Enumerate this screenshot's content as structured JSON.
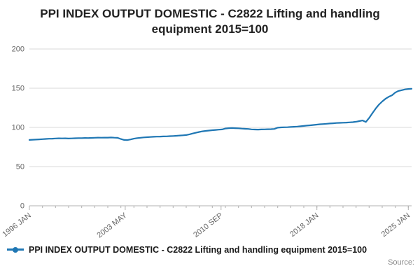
{
  "chart": {
    "title": "PPI INDEX OUTPUT DOMESTIC - C2822 Lifting and handling equipment 2015=100",
    "legend_label": "PPI INDEX OUTPUT DOMESTIC - C2822 Lifting and handling equipment 2015=100",
    "source_label": "Source:"
  },
  "colors": {
    "line": "#1f77b4",
    "grid": "#d9d9d9",
    "axis": "#b0b0b0",
    "tick_text": "#666666",
    "title_text": "#222222"
  },
  "chart_data": {
    "type": "line",
    "title": "PPI INDEX OUTPUT DOMESTIC - C2822 Lifting and handling equipment 2015=100",
    "series_name": "PPI INDEX OUTPUT DOMESTIC - C2822 Lifting and handling equipment 2015=100",
    "x_unit": "year (quarterly samples, decimal years)",
    "x_start": 1996.0,
    "x_step": 0.25,
    "xlim": [
      1996.0,
      2025.25
    ],
    "ylim": [
      0,
      200
    ],
    "yticks": [
      0,
      50,
      100,
      150,
      200
    ],
    "xticks": [
      {
        "pos": 1996.0,
        "label": "1996 JAN"
      },
      {
        "pos": 2003.333,
        "label": "2003 MAY"
      },
      {
        "pos": 2010.667,
        "label": "2010 SEP"
      },
      {
        "pos": 2018.0,
        "label": "2018 JAN"
      },
      {
        "pos": 2025.0,
        "label": "2025 JAN"
      }
    ],
    "grid": "horizontal gridlines only",
    "legend_position": "bottom-left",
    "values": [
      84.0,
      84.3,
      84.5,
      84.7,
      85.0,
      85.3,
      85.5,
      85.6,
      85.9,
      86.1,
      86.0,
      86.1,
      85.8,
      86.0,
      86.2,
      86.3,
      86.3,
      86.5,
      86.4,
      86.6,
      86.8,
      87.0,
      86.9,
      87.0,
      87.0,
      87.1,
      86.9,
      86.7,
      85.2,
      84.0,
      83.8,
      84.6,
      85.6,
      86.3,
      86.8,
      87.2,
      87.5,
      87.8,
      88.0,
      88.2,
      88.3,
      88.5,
      88.6,
      88.8,
      89.0,
      89.3,
      89.6,
      89.9,
      90.3,
      91.2,
      92.2,
      93.2,
      94.2,
      95.0,
      95.5,
      96.0,
      96.4,
      96.8,
      97.1,
      97.4,
      98.6,
      99.0,
      99.2,
      99.0,
      98.8,
      98.5,
      98.2,
      98.0,
      97.5,
      97.3,
      97.2,
      97.4,
      97.5,
      97.7,
      97.8,
      98.0,
      99.6,
      100.0,
      100.2,
      100.3,
      100.5,
      100.8,
      101.1,
      101.4,
      101.9,
      102.3,
      102.7,
      103.1,
      103.6,
      104.0,
      104.3,
      104.6,
      105.0,
      105.3,
      105.6,
      105.8,
      106.0,
      106.2,
      106.4,
      106.7,
      107.2,
      108.0,
      108.8,
      107.0,
      112.0,
      118.0,
      124.0,
      129.0,
      133.0,
      136.5,
      139.0,
      141.0,
      144.5,
      146.5,
      147.5,
      148.5,
      149.0,
      149.3
    ]
  }
}
